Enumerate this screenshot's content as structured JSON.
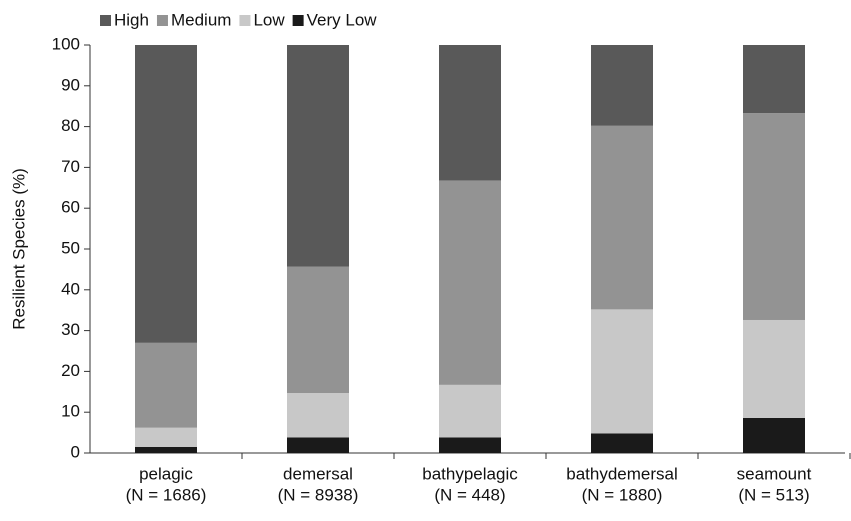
{
  "chart_data": {
    "type": "stacked_bar",
    "ylabel": "Resilient Species  (%)",
    "categories": [
      [
        "pelagic",
        "(N = 1686)"
      ],
      [
        "demersal",
        "(N = 8938)"
      ],
      [
        "bathypelagic",
        "(N = 448)"
      ],
      [
        "bathydemersal",
        "(N = 1880)"
      ],
      [
        "seamount",
        "(N = 513)"
      ]
    ],
    "series": [
      {
        "name": "High",
        "color": "#595959",
        "values": [
          73,
          54.3,
          33.2,
          19.8,
          16.7
        ]
      },
      {
        "name": "Medium",
        "color": "#939393",
        "values": [
          20.8,
          31,
          50.1,
          45,
          50.7
        ]
      },
      {
        "name": "Low",
        "color": "#c8c8c8",
        "values": [
          4.7,
          10.9,
          12.9,
          30.4,
          24
        ]
      },
      {
        "name": "Very Low",
        "color": "#1a1a1a",
        "values": [
          1.5,
          3.8,
          3.8,
          4.8,
          8.6
        ]
      }
    ],
    "ylim": [
      0,
      100
    ],
    "yticks": [
      0,
      10,
      20,
      30,
      40,
      50,
      60,
      70,
      80,
      90,
      100
    ],
    "grid": false,
    "legend": "top-left"
  }
}
